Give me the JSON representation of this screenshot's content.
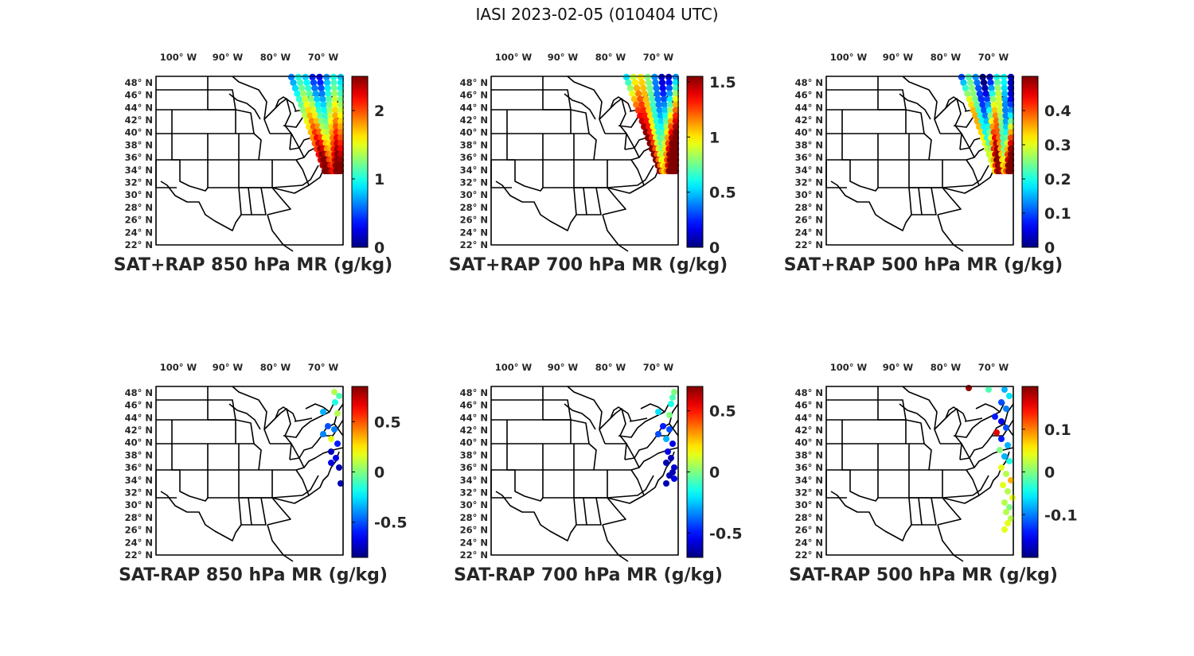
{
  "figure": {
    "title": "IASI 2023-02-05 (010404 UTC)"
  },
  "map_axes": {
    "lat_ticks": [
      "48° N",
      "46° N",
      "44° N",
      "42° N",
      "40° N",
      "38° N",
      "36° N",
      "34° N",
      "32° N",
      "30° N",
      "28° N",
      "26° N",
      "24° N",
      "22° N"
    ],
    "lat_values": [
      48,
      46,
      44,
      42,
      40,
      38,
      36,
      34,
      32,
      30,
      28,
      26,
      24,
      22
    ],
    "lon_ticks": [
      "100° W",
      "90° W",
      "80° W",
      "70° W"
    ],
    "lon_values": [
      -100,
      -90,
      -80,
      -70
    ],
    "lat_range": [
      22,
      49
    ],
    "lon_range": [
      -107,
      -67
    ],
    "projection": "lambert-like (US states outline)"
  },
  "panels": [
    {
      "title": "SAT+RAP 850 hPa MR (g/kg)",
      "colorbar": {
        "colormap": "jet",
        "range": [
          0,
          2.5
        ],
        "ticks": [
          "0",
          "1",
          "2"
        ],
        "tick_values": [
          0,
          1,
          2
        ]
      }
    },
    {
      "title": "SAT+RAP 700 hPa MR (g/kg)",
      "colorbar": {
        "colormap": "jet",
        "range": [
          0,
          1.55
        ],
        "ticks": [
          "0",
          "0.5",
          "1",
          "1.5"
        ],
        "tick_values": [
          0,
          0.5,
          1,
          1.5
        ]
      }
    },
    {
      "title": "SAT+RAP 500 hPa MR (g/kg)",
      "colorbar": {
        "colormap": "jet",
        "range": [
          0,
          0.5
        ],
        "ticks": [
          "0",
          "0.1",
          "0.2",
          "0.3",
          "0.4"
        ],
        "tick_values": [
          0,
          0.1,
          0.2,
          0.3,
          0.4
        ]
      }
    },
    {
      "title": "SAT-RAP 850 hPa MR (g/kg)",
      "colorbar": {
        "colormap": "jet",
        "range": [
          -0.85,
          0.85
        ],
        "ticks": [
          "-0.5",
          "0",
          "0.5"
        ],
        "tick_values": [
          -0.5,
          0,
          0.5
        ]
      }
    },
    {
      "title": "SAT-RAP 700 hPa MR (g/kg)",
      "colorbar": {
        "colormap": "jet",
        "range": [
          -0.7,
          0.7
        ],
        "ticks": [
          "-0.5",
          "0",
          "0.5"
        ],
        "tick_values": [
          -0.5,
          0,
          0.5
        ]
      }
    },
    {
      "title": "SAT-RAP 500 hPa MR (g/kg)",
      "colorbar": {
        "colormap": "jet",
        "range": [
          -0.2,
          0.2
        ],
        "ticks": [
          "-0.1",
          "0",
          "0.1"
        ],
        "tick_values": [
          -0.1,
          0,
          0.1
        ]
      }
    }
  ]
}
